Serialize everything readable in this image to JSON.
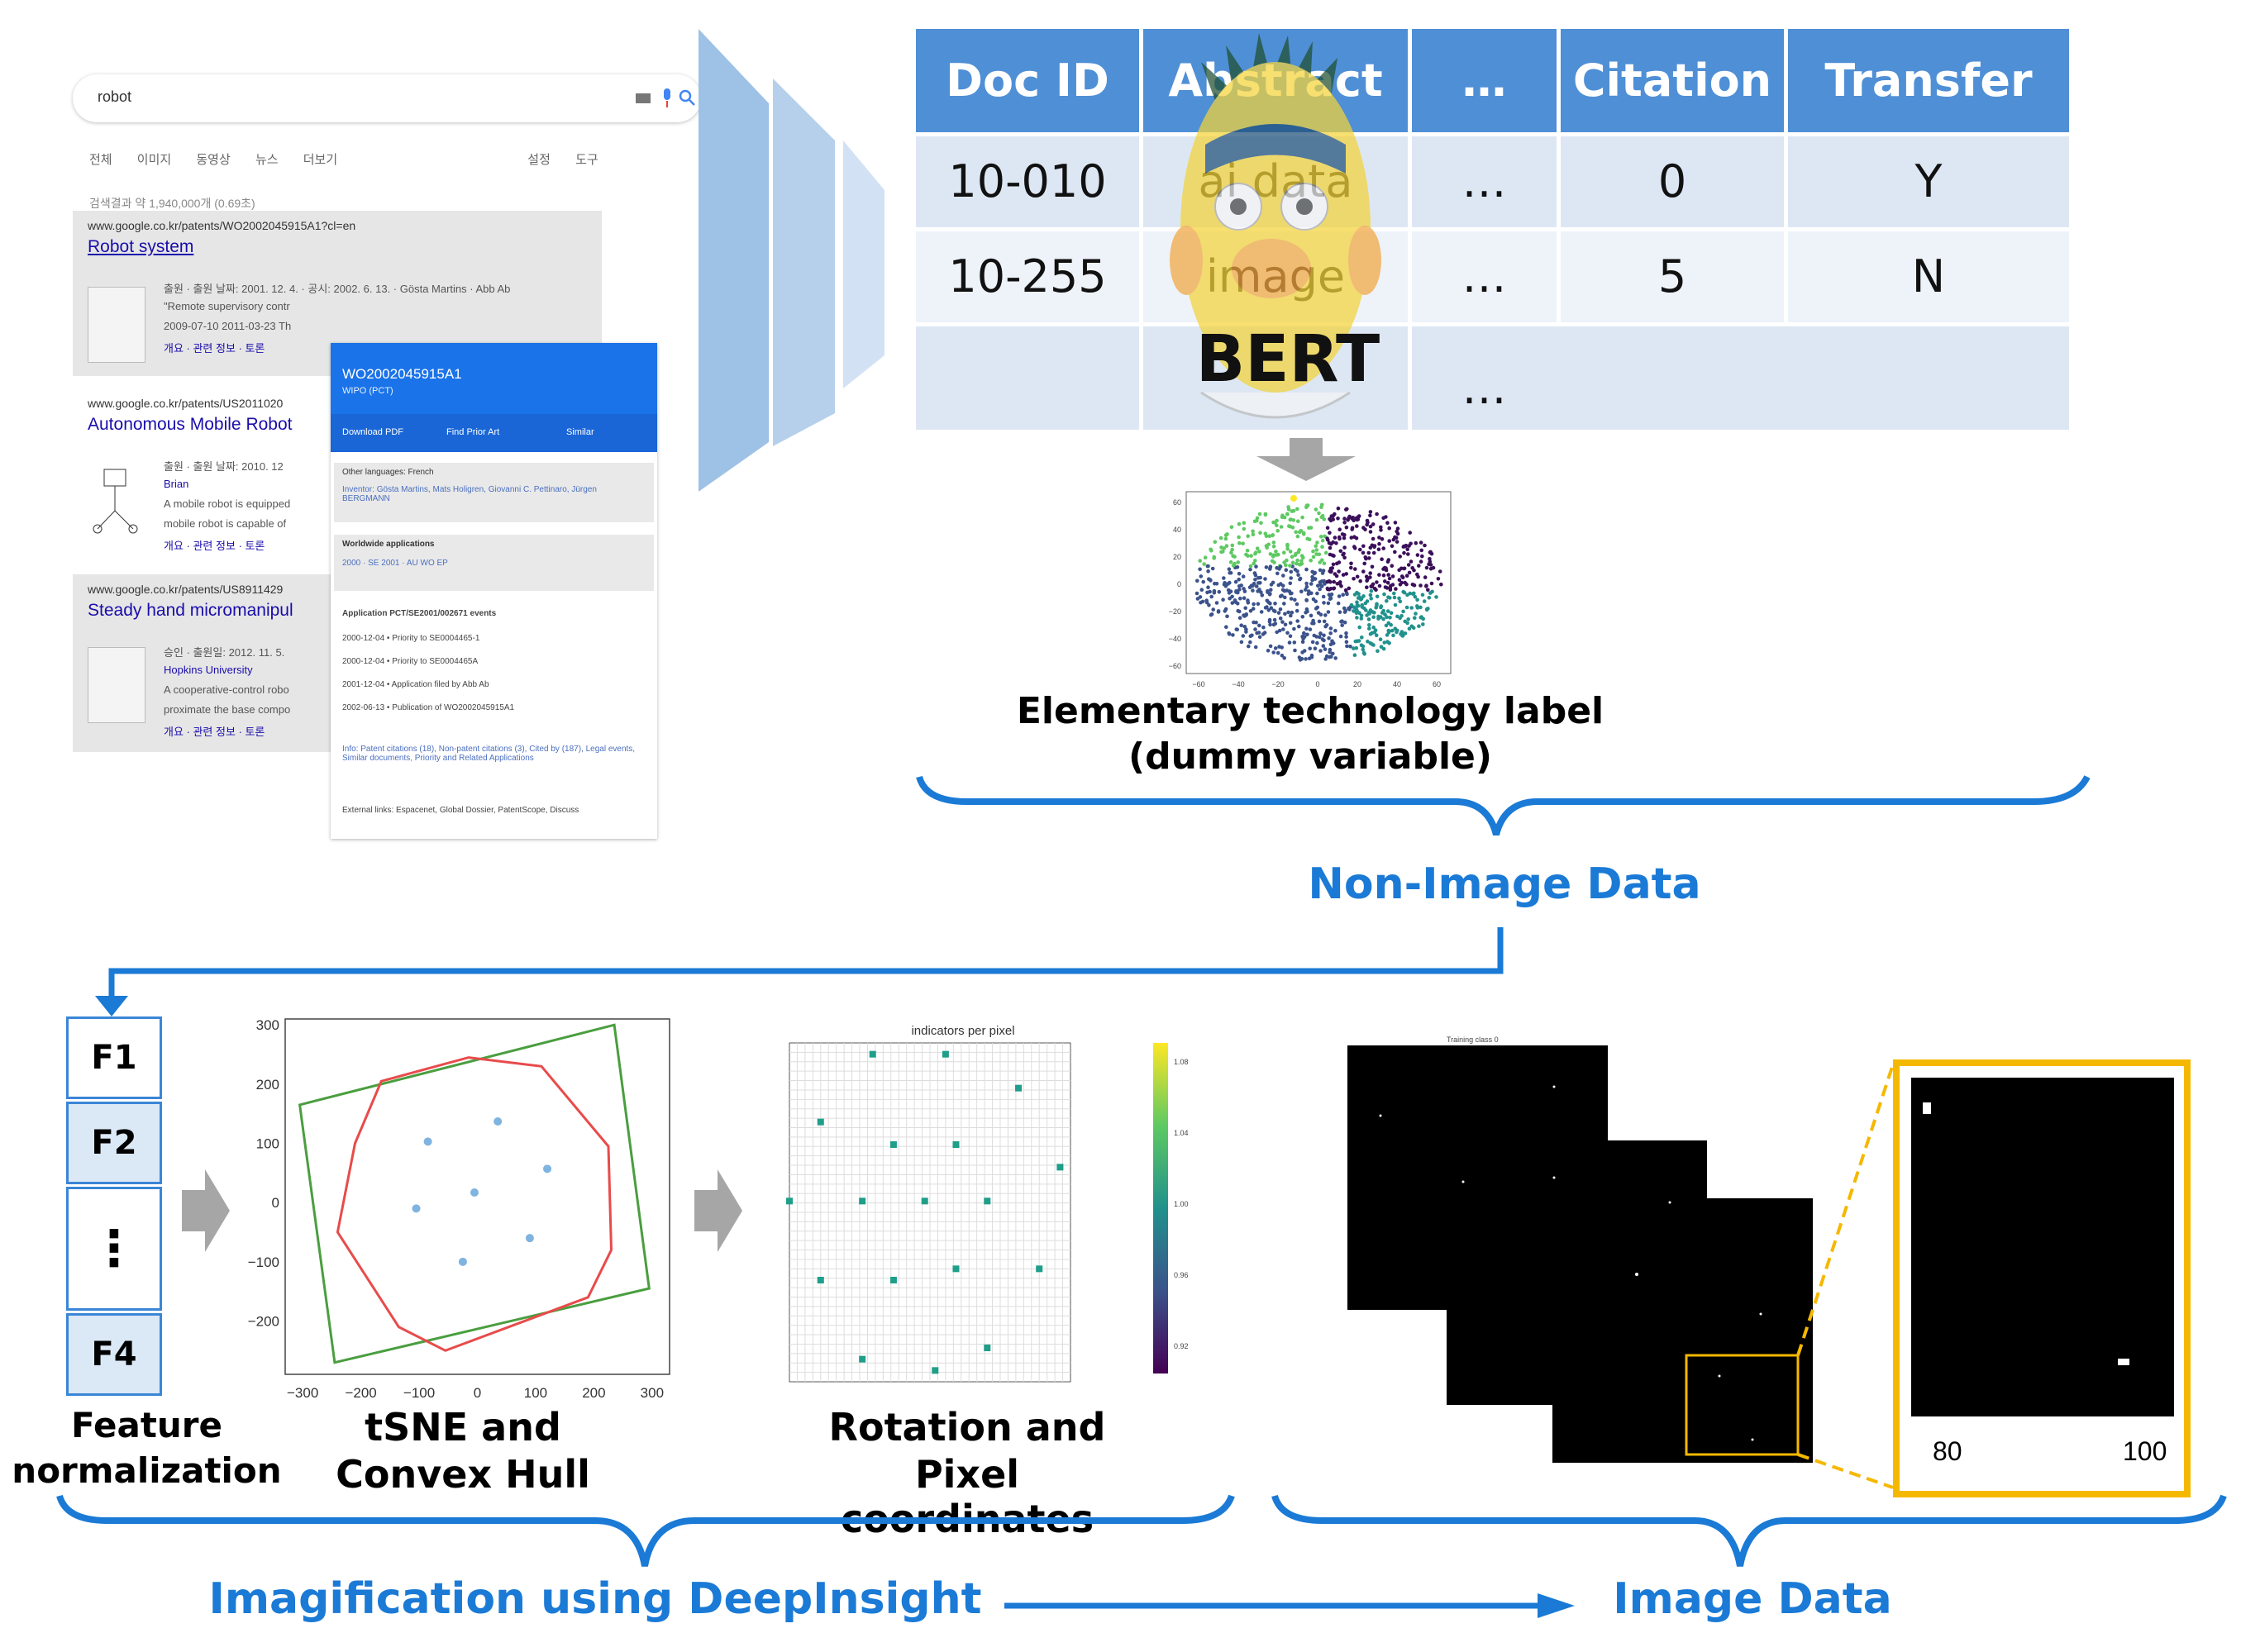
{
  "search": {
    "query": "robot",
    "tabs": [
      "전체",
      "이미지",
      "동영상",
      "뉴스",
      "더보기",
      "설정",
      "도구"
    ],
    "result_count": "검색결과 약 1,940,000개 (0.69초)",
    "results": [
      {
        "url": "www.google.co.kr/patents/WO2002045915A1?cl=en",
        "title": "Robot system",
        "lines": [
          "출원 · 출원 날짜: 2001. 12. 4. · 공시: 2002. 6. 13. · Gösta Martins · Abb Ab",
          "\"Remote supervisory contr",
          "2009-07-10 2011-03-23 Th",
          "개요 · 관련 정보 · 토론"
        ]
      },
      {
        "url": "www.google.co.kr/patents/US2011020",
        "title": "Autonomous Mobile Robot",
        "lines": [
          "출원 · 출원 날짜: 2010. 12",
          "Brian",
          "A mobile robot is equipped",
          "mobile robot is capable of",
          "개요 · 관련 정보 · 토론"
        ]
      },
      {
        "url": "www.google.co.kr/patents/US8911429",
        "title": "Steady hand micromanipul",
        "lines": [
          "승인 · 출원일: 2012. 11. 5.",
          "Hopkins University",
          "A cooperative-control robo",
          "proximate the base compo",
          "개요 · 관련 정보 · 토론"
        ]
      }
    ]
  },
  "patent_card": {
    "id": "WO2002045915A1",
    "office": "WIPO (PCT)",
    "buttons": [
      "Download PDF",
      "Find Prior Art",
      "Similar"
    ],
    "other_languages": "Other languages: French",
    "inventor": "Inventor: Gösta Martins, Mats Holigren, Giovanni C. Pettinaro, Jürgen BERGMANN",
    "worldwide": "Worldwide applications",
    "worldwide_line": "2000 · SE  2001 · AU WO EP",
    "events_title": "Application PCT/SE2001/002671 events",
    "events": [
      "2000-12-04 • Priority to SE0004465-1",
      "2000-12-04 • Priority to SE0004465A",
      "2001-12-04 • Application filed by Abb Ab",
      "2002-06-13 • Publication of WO2002045915A1"
    ],
    "info": "Info: Patent citations (18), Non-patent citations (3), Cited by (187), Legal events, Similar documents, Priority and Related Applications",
    "external": "External links: Espacenet, Global Dossier, PatentScope, Discuss"
  },
  "table": {
    "headers": [
      "Doc ID",
      "Abstract",
      "…",
      "Citation",
      "Transfer"
    ],
    "rows": [
      [
        "10-010",
        "ai data",
        "…",
        "0",
        "Y"
      ],
      [
        "10-255",
        "image",
        "…",
        "5",
        "N"
      ],
      [
        "",
        "",
        "…",
        "",
        ""
      ]
    ],
    "overlay_label": "BERT"
  },
  "tsne_top": {
    "x_ticks": [
      "−60",
      "−40",
      "−20",
      "0",
      "20",
      "40",
      "60"
    ],
    "y_ticks": [
      "60",
      "40",
      "20",
      "0",
      "−20",
      "−40",
      "−60"
    ]
  },
  "labels": {
    "elementary": "Elementary technology label",
    "dummy": "(dummy variable)",
    "non_image": "Non-Image Data",
    "feature_line1": "Feature",
    "feature_line2": "normalization",
    "tsne_line1": "tSNE and",
    "tsne_line2": "Convex Hull",
    "rotation_line1": "Rotation and",
    "rotation_line2": "Pixel coordinates",
    "imagification": "Imagification using DeepInsight",
    "image_data": "Image Data"
  },
  "features": [
    "F1",
    "F2",
    "⋮",
    "F4"
  ],
  "hull_plot": {
    "x_ticks": [
      "−300",
      "−200",
      "−100",
      "0",
      "100",
      "200",
      "300"
    ],
    "y_ticks": [
      "300",
      "200",
      "100",
      "0",
      "−100",
      "−200"
    ]
  },
  "pixel_plot": {
    "title": "indicators per pixel",
    "colorbar_ticks": [
      "1.08",
      "1.04",
      "1.00",
      "0.96",
      "0.92"
    ]
  },
  "stack_title": "Training class 0",
  "zoom_ticks": [
    "80",
    "100"
  ],
  "colors": {
    "accent_blue": "#1a7ad6",
    "header_blue": "#4f8fd6",
    "row_blue": "#dde7f4",
    "zoom_orange": "#f5b800",
    "hull_green": "#4a9e3f",
    "hull_red": "#e84b4b",
    "point_teal": "#1f9e89"
  }
}
